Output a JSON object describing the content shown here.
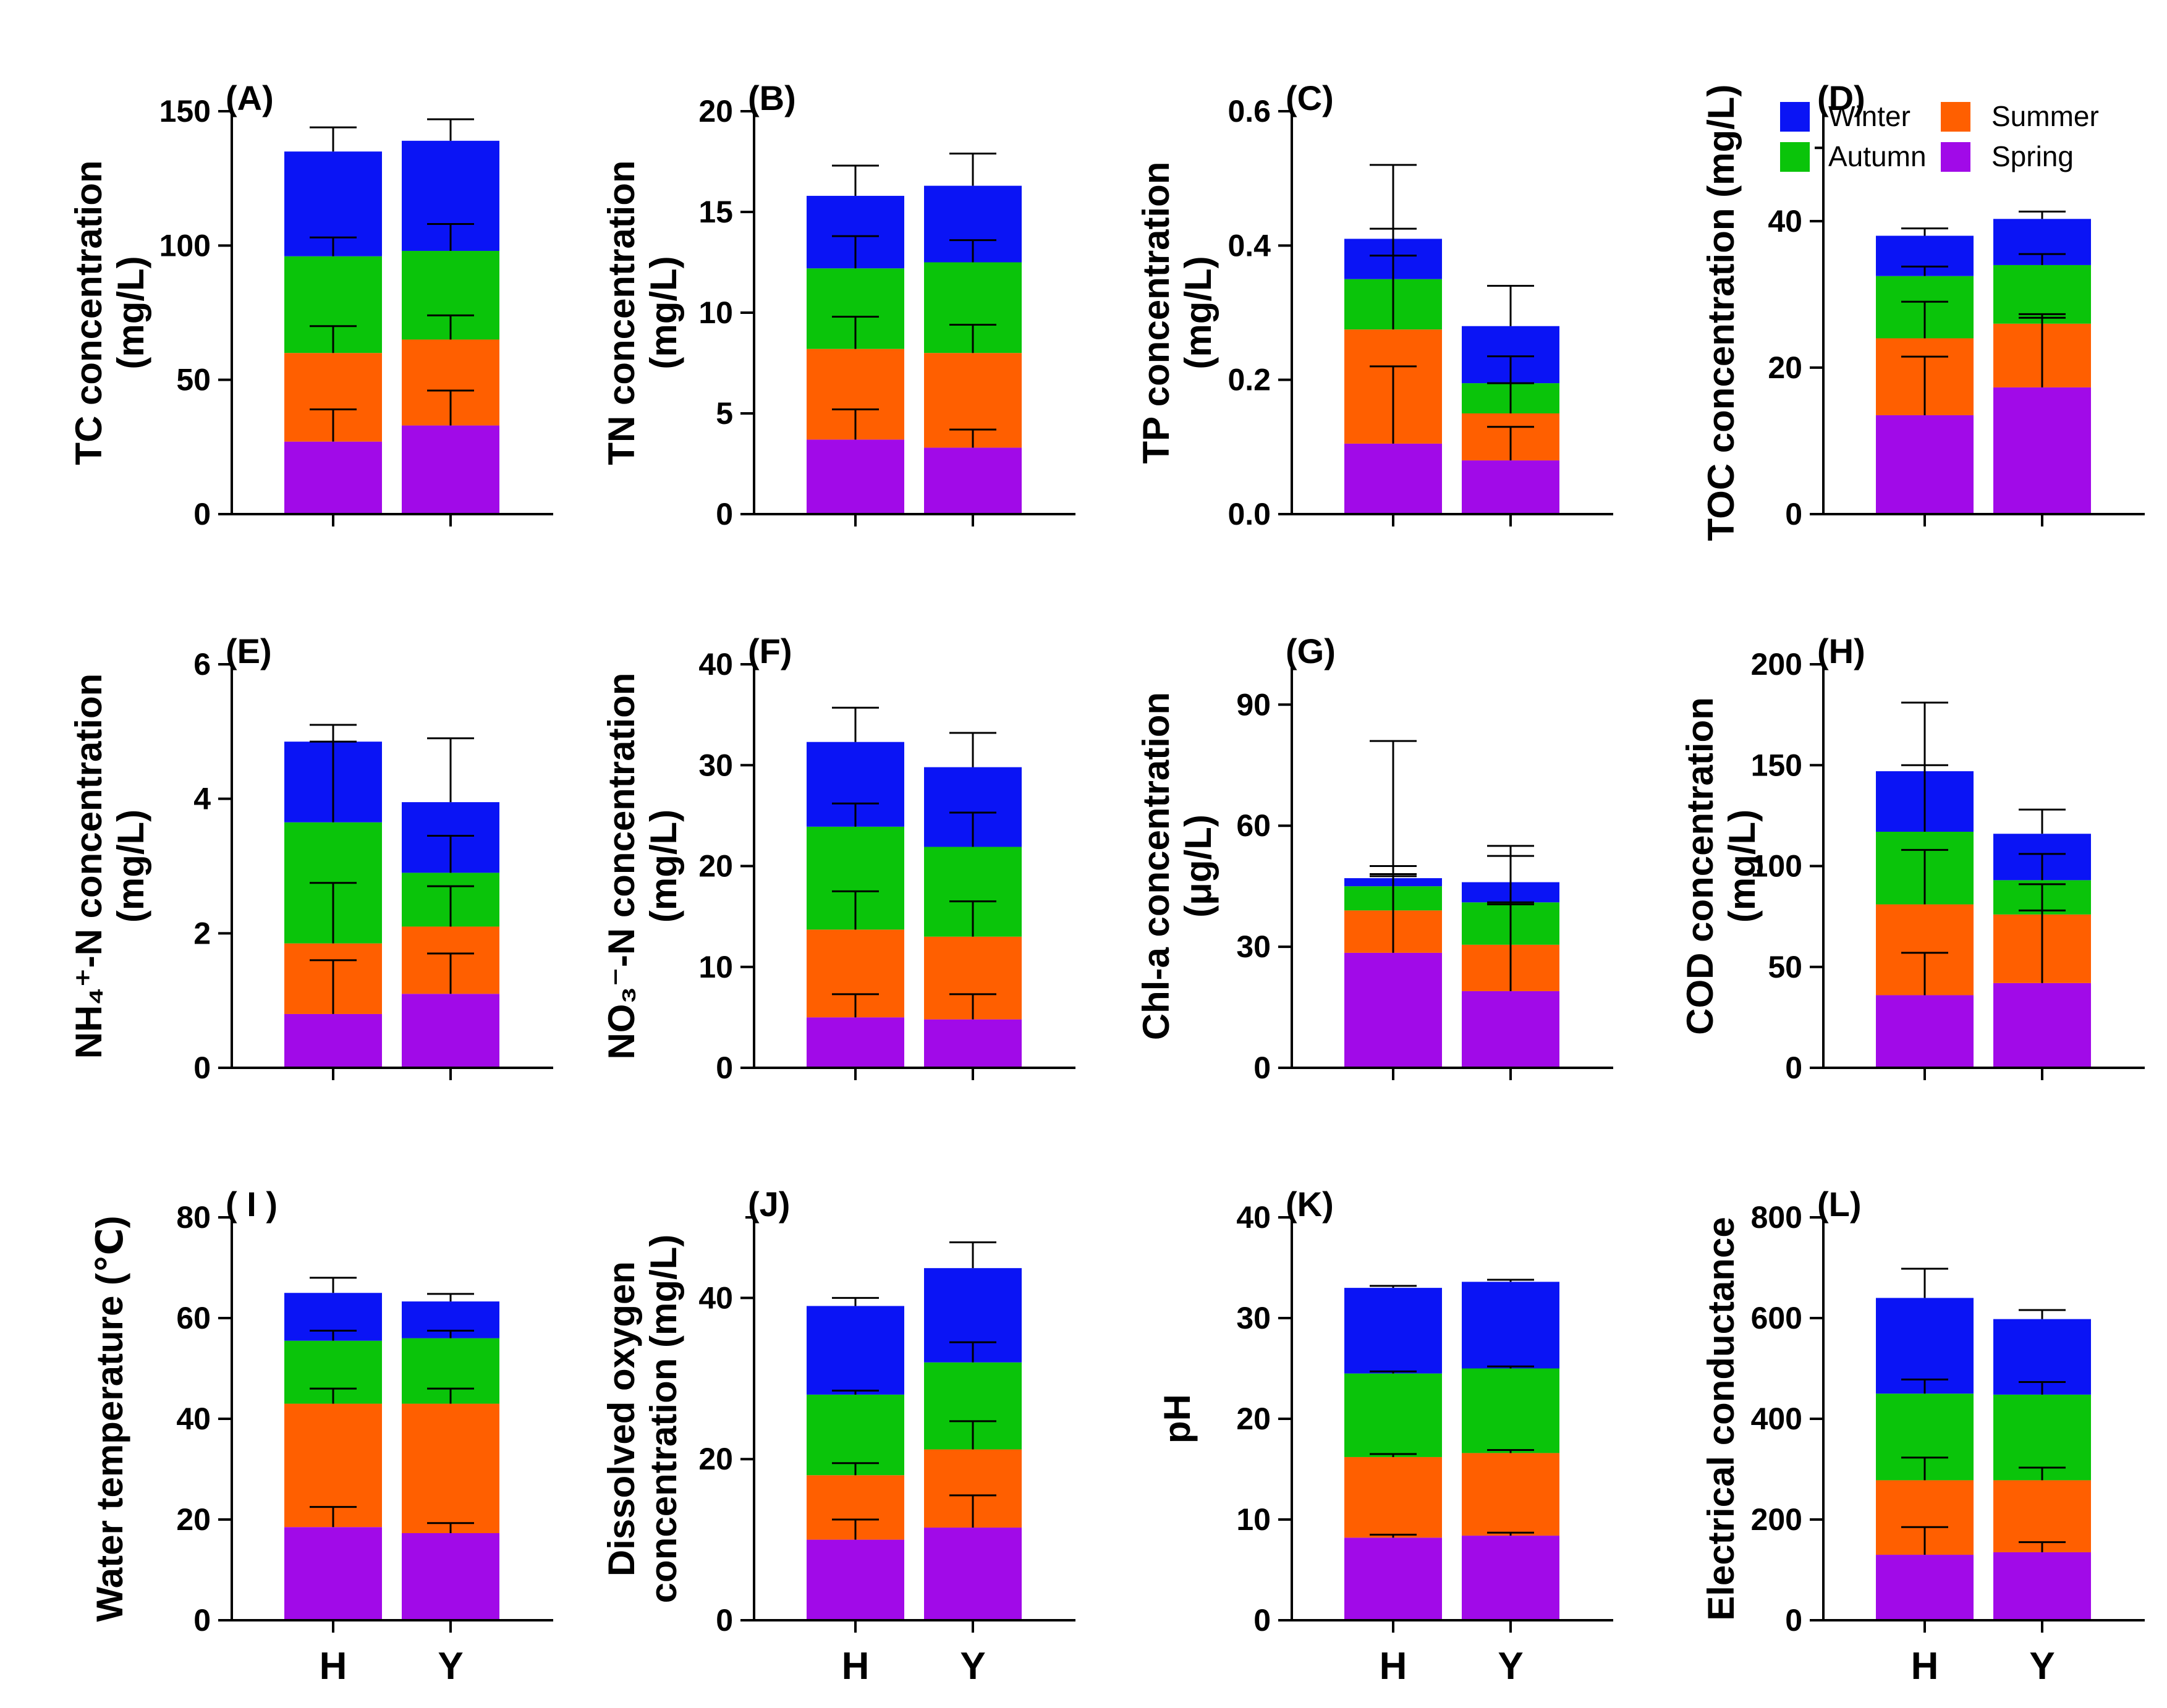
{
  "legend": {
    "items": [
      {
        "name": "Winter",
        "color": "#0a14f5"
      },
      {
        "name": "Summer",
        "color": "#ff5f00"
      },
      {
        "name": "Autumn",
        "color": "#0ac40a"
      },
      {
        "name": "Spring",
        "color": "#a10ae8"
      }
    ]
  },
  "chart_data": [
    {
      "type": "bar",
      "stacked": true,
      "panel": "(A)",
      "ylabel": [
        "TC concentration",
        "(mg/L)"
      ],
      "ylim": [
        0,
        150
      ],
      "yticks": [
        "0",
        "50",
        "100",
        "150"
      ],
      "categories": [
        "H",
        "Y"
      ],
      "show_xlabels": false,
      "series": [
        {
          "name": "Spring",
          "values": [
            27,
            33
          ],
          "errors": [
            12,
            13
          ]
        },
        {
          "name": "Summer",
          "values": [
            33,
            32
          ],
          "errors": [
            10,
            9
          ]
        },
        {
          "name": "Autumn",
          "values": [
            36,
            33
          ],
          "errors": [
            7,
            10
          ]
        },
        {
          "name": "Winter",
          "values": [
            39,
            41
          ],
          "errors": [
            9,
            8
          ]
        }
      ]
    },
    {
      "type": "bar",
      "stacked": true,
      "panel": "(B)",
      "ylabel": [
        "TN concentration",
        "(mg/L)"
      ],
      "ylim": [
        0,
        20
      ],
      "yticks": [
        "0",
        "5",
        "10",
        "15",
        "20"
      ],
      "categories": [
        "H",
        "Y"
      ],
      "show_xlabels": false,
      "series": [
        {
          "name": "Spring",
          "values": [
            3.7,
            3.3
          ],
          "errors": [
            1.5,
            0.9
          ]
        },
        {
          "name": "Summer",
          "values": [
            4.5,
            4.7
          ],
          "errors": [
            1.6,
            1.4
          ]
        },
        {
          "name": "Autumn",
          "values": [
            4.0,
            4.5
          ],
          "errors": [
            1.6,
            1.1
          ]
        },
        {
          "name": "Winter",
          "values": [
            3.6,
            3.8
          ],
          "errors": [
            1.5,
            1.6
          ]
        }
      ]
    },
    {
      "type": "bar",
      "stacked": true,
      "panel": "(C)",
      "ylabel": [
        "TP concentration",
        "(mg/L)"
      ],
      "ylim": [
        0,
        0.6
      ],
      "yticks": [
        "0.0",
        "0.2",
        "0.4",
        "0.6"
      ],
      "categories": [
        "H",
        "Y"
      ],
      "show_xlabels": false,
      "series": [
        {
          "name": "Spring",
          "values": [
            0.105,
            0.08
          ],
          "errors": [
            0.115,
            0.05
          ]
        },
        {
          "name": "Summer",
          "values": [
            0.17,
            0.07
          ],
          "errors": [
            0.11,
            0.045
          ]
        },
        {
          "name": "Autumn",
          "values": [
            0.075,
            0.045
          ],
          "errors": [
            0.075,
            0.04
          ]
        },
        {
          "name": "Winter",
          "values": [
            0.06,
            0.085
          ],
          "errors": [
            0.11,
            0.06
          ]
        }
      ]
    },
    {
      "type": "bar",
      "stacked": true,
      "panel": "(D)",
      "ylabel": [
        "TOC concentration (mg/L)"
      ],
      "ylim": [
        0,
        55
      ],
      "yticks": [
        "0",
        "20",
        "40"
      ],
      "ytick_values": [
        0,
        20,
        40
      ],
      "categories": [
        "H",
        "Y"
      ],
      "show_xlabels": false,
      "series": [
        {
          "name": "Spring",
          "values": [
            13.5,
            17.3
          ],
          "errors": [
            8,
            9.5
          ]
        },
        {
          "name": "Summer",
          "values": [
            10.5,
            8.7
          ],
          "errors": [
            5,
            1.3
          ]
        },
        {
          "name": "Autumn",
          "values": [
            8.5,
            8
          ],
          "errors": [
            1.3,
            1.5
          ]
        },
        {
          "name": "Winter",
          "values": [
            5.5,
            6.3
          ],
          "errors": [
            1,
            1
          ]
        }
      ]
    },
    {
      "type": "bar",
      "stacked": true,
      "panel": "(E)",
      "ylabel": [
        "NH₄⁺-N concentration",
        "(mg/L)"
      ],
      "ylim": [
        0,
        6
      ],
      "yticks": [
        "0",
        "2",
        "4",
        "6"
      ],
      "categories": [
        "H",
        "Y"
      ],
      "show_xlabels": false,
      "series": [
        {
          "name": "Spring",
          "values": [
            0.8,
            1.1
          ],
          "errors": [
            0.8,
            0.6
          ]
        },
        {
          "name": "Summer",
          "values": [
            1.05,
            1.0
          ],
          "errors": [
            0.9,
            0.6
          ]
        },
        {
          "name": "Autumn",
          "values": [
            1.8,
            0.8
          ],
          "errors": [
            1.2,
            0.55
          ]
        },
        {
          "name": "Winter",
          "values": [
            1.2,
            1.05
          ],
          "errors": [
            0.25,
            0.95
          ]
        }
      ]
    },
    {
      "type": "bar",
      "stacked": true,
      "panel": "(F)",
      "ylabel": [
        "NO₃⁻-N concentration",
        "(mg/L)"
      ],
      "ylim": [
        0,
        40
      ],
      "yticks": [
        "0",
        "10",
        "20",
        "30",
        "40"
      ],
      "categories": [
        "H",
        "Y"
      ],
      "show_xlabels": false,
      "series": [
        {
          "name": "Spring",
          "values": [
            5,
            4.8
          ],
          "errors": [
            2.3,
            2.5
          ]
        },
        {
          "name": "Summer",
          "values": [
            8.7,
            8.2
          ],
          "errors": [
            3.8,
            3.5
          ]
        },
        {
          "name": "Autumn",
          "values": [
            10.2,
            8.9
          ],
          "errors": [
            2.3,
            3.4
          ]
        },
        {
          "name": "Winter",
          "values": [
            8.4,
            7.9
          ],
          "errors": [
            3.4,
            3.4
          ]
        }
      ]
    },
    {
      "type": "bar",
      "stacked": true,
      "panel": "(G)",
      "ylabel": [
        "Chl-a concentration",
        "(μg/L)"
      ],
      "ylim": [
        0,
        100
      ],
      "yticks": [
        "0",
        "30",
        "60",
        "90"
      ],
      "ytick_values": [
        0,
        30,
        60,
        90
      ],
      "categories": [
        "H",
        "Y"
      ],
      "show_xlabels": false,
      "series": [
        {
          "name": "Spring",
          "values": [
            28.5,
            19
          ],
          "errors": [
            21.5,
            22
          ]
        },
        {
          "name": "Summer",
          "values": [
            10.5,
            11.5
          ],
          "errors": [
            8.5,
            10
          ]
        },
        {
          "name": "Autumn",
          "values": [
            6,
            10.5
          ],
          "errors": [
            3,
            11.5
          ]
        },
        {
          "name": "Winter",
          "values": [
            2,
            5
          ],
          "errors": [
            34,
            9
          ]
        }
      ]
    },
    {
      "type": "bar",
      "stacked": true,
      "panel": "(H)",
      "ylabel": [
        "COD concentration",
        "(mg/L)"
      ],
      "ylim": [
        0,
        200
      ],
      "yticks": [
        "0",
        "50",
        "100",
        "150",
        "200"
      ],
      "categories": [
        "H",
        "Y"
      ],
      "show_xlabels": false,
      "series": [
        {
          "name": "Spring",
          "values": [
            36,
            42
          ],
          "errors": [
            21,
            36
          ]
        },
        {
          "name": "Summer",
          "values": [
            45,
            34
          ],
          "errors": [
            27,
            15
          ]
        },
        {
          "name": "Autumn",
          "values": [
            36,
            17
          ],
          "errors": [
            33,
            13
          ]
        },
        {
          "name": "Winter",
          "values": [
            30,
            23
          ],
          "errors": [
            34,
            12
          ]
        }
      ]
    },
    {
      "type": "bar",
      "stacked": true,
      "panel": "( I )",
      "ylabel": [
        "Water temperature (℃)"
      ],
      "ylim": [
        0,
        80
      ],
      "yticks": [
        "0",
        "20",
        "40",
        "60",
        "80"
      ],
      "categories": [
        "H",
        "Y"
      ],
      "show_xlabels": true,
      "series": [
        {
          "name": "Spring",
          "values": [
            18.5,
            17.3
          ],
          "errors": [
            4,
            2
          ]
        },
        {
          "name": "Summer",
          "values": [
            24.5,
            25.7
          ],
          "errors": [
            3,
            3
          ]
        },
        {
          "name": "Autumn",
          "values": [
            12.5,
            13
          ],
          "errors": [
            2,
            1.5
          ]
        },
        {
          "name": "Winter",
          "values": [
            9.5,
            7.3
          ],
          "errors": [
            3,
            1.5
          ]
        }
      ]
    },
    {
      "type": "bar",
      "stacked": true,
      "panel": "(J)",
      "ylabel": [
        "Dissolved oxygen",
        "concentration (mg/L)"
      ],
      "ylim": [
        0,
        50
      ],
      "yticks": [
        "0",
        "20",
        "40"
      ],
      "ytick_values": [
        0,
        20,
        40
      ],
      "categories": [
        "H",
        "Y"
      ],
      "show_xlabels": true,
      "series": [
        {
          "name": "Spring",
          "values": [
            10,
            11.5
          ],
          "errors": [
            2.5,
            4
          ]
        },
        {
          "name": "Summer",
          "values": [
            8,
            9.7
          ],
          "errors": [
            1.5,
            3.5
          ]
        },
        {
          "name": "Autumn",
          "values": [
            10,
            10.8
          ],
          "errors": [
            0.5,
            2.5
          ]
        },
        {
          "name": "Winter",
          "values": [
            11,
            11.7
          ],
          "errors": [
            1,
            3.2
          ]
        }
      ]
    },
    {
      "type": "bar",
      "stacked": true,
      "panel": "(K)",
      "ylabel": [
        "pH"
      ],
      "ylim": [
        0,
        40
      ],
      "yticks": [
        "0",
        "10",
        "20",
        "30",
        "40"
      ],
      "categories": [
        "H",
        "Y"
      ],
      "show_xlabels": true,
      "series": [
        {
          "name": "Spring",
          "values": [
            8.2,
            8.4
          ],
          "errors": [
            0.3,
            0.3
          ]
        },
        {
          "name": "Summer",
          "values": [
            8.0,
            8.2
          ],
          "errors": [
            0.3,
            0.3
          ]
        },
        {
          "name": "Autumn",
          "values": [
            8.3,
            8.4
          ],
          "errors": [
            0.2,
            0.2
          ]
        },
        {
          "name": "Winter",
          "values": [
            8.5,
            8.6
          ],
          "errors": [
            0.2,
            0.2
          ]
        }
      ]
    },
    {
      "type": "bar",
      "stacked": true,
      "panel": "(L)",
      "ylabel": [
        "Electrical conductance"
      ],
      "ylim": [
        0,
        800
      ],
      "yticks": [
        "0",
        "200",
        "400",
        "600",
        "800"
      ],
      "categories": [
        "H",
        "Y"
      ],
      "show_xlabels": true,
      "series": [
        {
          "name": "Spring",
          "values": [
            130,
            135
          ],
          "errors": [
            55,
            20
          ]
        },
        {
          "name": "Summer",
          "values": [
            148,
            143
          ],
          "errors": [
            45,
            25
          ]
        },
        {
          "name": "Autumn",
          "values": [
            172,
            170
          ],
          "errors": [
            28,
            25
          ]
        },
        {
          "name": "Winter",
          "values": [
            190,
            150
          ],
          "errors": [
            58,
            18
          ]
        }
      ]
    }
  ]
}
